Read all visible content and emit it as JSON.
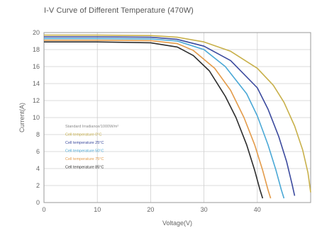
{
  "chart_data": {
    "type": "line",
    "title": "I-V Curve of Different Temperature (470W)",
    "xlabel": "Voltage(V)",
    "ylabel": "Current(A)",
    "xlim": [
      0,
      50
    ],
    "ylim": [
      0,
      20
    ],
    "xticks": [
      0,
      10,
      20,
      30,
      40
    ],
    "yticks": [
      0,
      2,
      4,
      6,
      8,
      10,
      12,
      14,
      16,
      18,
      20
    ],
    "grid": true,
    "legend_position": "center-left",
    "series": [
      {
        "name": "Standard Irradiance/1000W/m²",
        "color": "#8a8a8a",
        "points": []
      },
      {
        "name": "Cell temperature 0°C",
        "color": "#c8b04a",
        "points": [
          [
            0,
            19.7
          ],
          [
            10,
            19.7
          ],
          [
            20,
            19.65
          ],
          [
            25,
            19.45
          ],
          [
            30,
            18.9
          ],
          [
            35,
            17.8
          ],
          [
            40,
            15.8
          ],
          [
            43,
            13.8
          ],
          [
            45,
            11.8
          ],
          [
            47,
            9.0
          ],
          [
            48.5,
            6.2
          ],
          [
            49.5,
            3.5
          ],
          [
            50,
            1.2
          ]
        ]
      },
      {
        "name": "Cell temperature 25°C",
        "color": "#3b4a9e",
        "points": [
          [
            0,
            19.5
          ],
          [
            10,
            19.5
          ],
          [
            20,
            19.45
          ],
          [
            25,
            19.2
          ],
          [
            30,
            18.4
          ],
          [
            35,
            16.7
          ],
          [
            40,
            13.5
          ],
          [
            42,
            11.0
          ],
          [
            44,
            7.8
          ],
          [
            45.5,
            4.8
          ],
          [
            46.5,
            2.2
          ],
          [
            47,
            0.8
          ]
        ]
      },
      {
        "name": "Cell temperature 50°C",
        "color": "#4aa8d6",
        "points": [
          [
            0,
            19.3
          ],
          [
            10,
            19.3
          ],
          [
            20,
            19.25
          ],
          [
            25,
            19.0
          ],
          [
            30,
            18.0
          ],
          [
            34,
            16.0
          ],
          [
            38,
            12.8
          ],
          [
            40,
            10.2
          ],
          [
            42,
            6.8
          ],
          [
            43.5,
            3.8
          ],
          [
            44.5,
            1.5
          ],
          [
            45,
            0.5
          ]
        ]
      },
      {
        "name": "Cell temperature 75°C",
        "color": "#e39b4a",
        "points": [
          [
            0,
            19.1
          ],
          [
            10,
            19.1
          ],
          [
            20,
            19.05
          ],
          [
            25,
            18.7
          ],
          [
            28,
            17.9
          ],
          [
            32,
            15.8
          ],
          [
            35,
            13.2
          ],
          [
            37.5,
            10.0
          ],
          [
            39.5,
            6.8
          ],
          [
            41,
            3.8
          ],
          [
            42,
            1.5
          ],
          [
            42.5,
            0.5
          ]
        ]
      },
      {
        "name": "Cell temperature 85°C",
        "color": "#2c2c2c",
        "points": [
          [
            0,
            18.9
          ],
          [
            10,
            18.9
          ],
          [
            20,
            18.8
          ],
          [
            25,
            18.3
          ],
          [
            28,
            17.3
          ],
          [
            31,
            15.5
          ],
          [
            34,
            12.5
          ],
          [
            36,
            10.0
          ],
          [
            38,
            6.8
          ],
          [
            39.5,
            3.8
          ],
          [
            40.5,
            1.5
          ],
          [
            41,
            0.5
          ]
        ]
      }
    ]
  }
}
